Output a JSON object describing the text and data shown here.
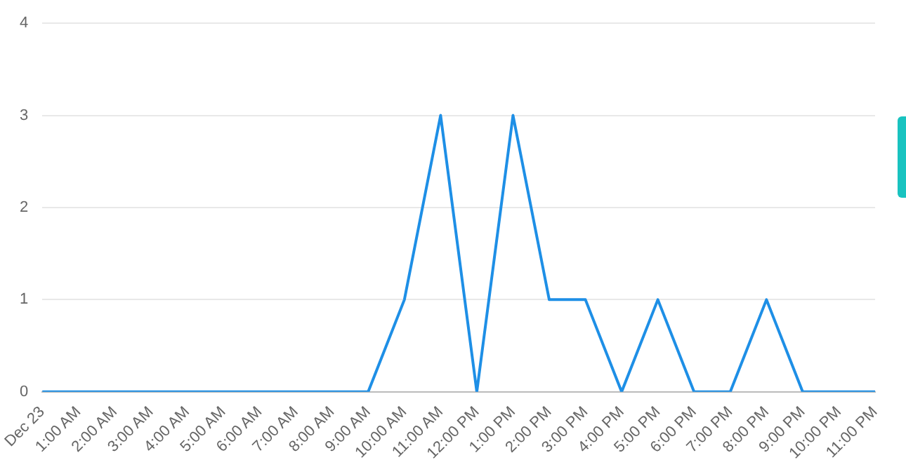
{
  "chart_data": {
    "type": "line",
    "categories": [
      "Dec 23",
      "1:00 AM",
      "2:00 AM",
      "3:00 AM",
      "4:00 AM",
      "5:00 AM",
      "6:00 AM",
      "7:00 AM",
      "8:00 AM",
      "9:00 AM",
      "10:00 AM",
      "11:00 AM",
      "12:00 PM",
      "1:00 PM",
      "2:00 PM",
      "3:00 PM",
      "4:00 PM",
      "5:00 PM",
      "6:00 PM",
      "7:00 PM",
      "8:00 PM",
      "9:00 PM",
      "10:00 PM",
      "11:00 PM"
    ],
    "series": [
      {
        "color": "#1e8fe6",
        "values": [
          0,
          0,
          0,
          0,
          0,
          0,
          0,
          0,
          0,
          0,
          1,
          3,
          0,
          3,
          1,
          1,
          0,
          1,
          0,
          0,
          1,
          0,
          0,
          0
        ]
      }
    ],
    "ylim": [
      0,
      4
    ],
    "yticks": [
      0,
      1,
      2,
      3,
      4
    ],
    "grid": "y",
    "legend": false,
    "marker": "none",
    "line_style": "solid"
  }
}
